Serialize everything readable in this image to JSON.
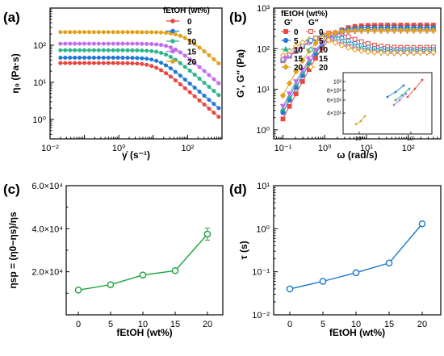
{
  "panels": {
    "a": {
      "label": "(a)"
    },
    "b": {
      "label": "(b)"
    },
    "c": {
      "label": "(c)"
    },
    "d": {
      "label": "(d)"
    }
  },
  "colors": {
    "0": "#e8463e",
    "5": "#1f78d6",
    "10": "#2fb58a",
    "15": "#c36ee8",
    "20": "#e0a11b",
    "c_line": "#1aa33c",
    "d_line": "#1877cf"
  },
  "chart_data": [
    {
      "id": "a",
      "type": "line",
      "xscale": "log",
      "yscale": "log",
      "xlim": [
        0.01,
        1000
      ],
      "ylim": [
        0.3,
        1000
      ],
      "x_ticks": [
        "10⁻²",
        "10⁰",
        "10²"
      ],
      "y_ticks": [
        "10⁰",
        "10¹",
        "10²"
      ],
      "xlabel": "γ̇ (s⁻¹)",
      "ylabel": "η₀ (Pa·s)",
      "legend_title": "fEtOH (wt%)",
      "series": [
        {
          "name": "0",
          "eta0": 33,
          "lambda": 0.085
        },
        {
          "name": "5",
          "eta0": 46,
          "lambda": 0.065
        },
        {
          "name": "10",
          "eta0": 73,
          "lambda": 0.042
        },
        {
          "name": "15",
          "eta0": 110,
          "lambda": 0.028
        },
        {
          "name": "20",
          "eta0": 225,
          "lambda": 0.0145
        }
      ],
      "n": 0.21,
      "x_range": [
        0.02,
        800
      ]
    },
    {
      "id": "b",
      "type": "line",
      "xscale": "log",
      "yscale": "log",
      "xlim": [
        0.06,
        600
      ],
      "ylim": [
        0.6,
        1000
      ],
      "x_ticks": [
        "10⁻¹",
        "10⁰",
        "10¹",
        "10²"
      ],
      "y_ticks": [
        "10⁰",
        "10¹",
        "10²",
        "10³"
      ],
      "xlabel": "ω (rad/s)",
      "ylabel": "G′, G″ (Pa)",
      "legend_title": "fEtOH (wt%)",
      "legend_cols": [
        "G′",
        "G″"
      ],
      "series": [
        {
          "name": "0",
          "G0": 380,
          "lambda": 0.7
        },
        {
          "name": "5",
          "G0": 330,
          "lambda": 0.9
        },
        {
          "name": "10",
          "G0": 300,
          "lambda": 1.05
        },
        {
          "name": "15",
          "G0": 270,
          "lambda": 1.2
        },
        {
          "name": "20",
          "G0": 280,
          "lambda": 1.6
        }
      ],
      "x_range": [
        0.1,
        400
      ],
      "inset": {
        "y_ticks": [
          "10²",
          "8×10¹",
          "6×10¹",
          "4×10¹"
        ],
        "x_ticks": [
          "10⁰",
          "10¹"
        ]
      }
    },
    {
      "id": "c",
      "type": "line",
      "categories": [
        "0",
        "5",
        "10",
        "15",
        "20"
      ],
      "values": [
        11500,
        14000,
        18500,
        20500,
        37500
      ],
      "errors": [
        700,
        600,
        600,
        600,
        2800
      ],
      "ylim": [
        0,
        60000
      ],
      "y_ticks": [
        "2.0×10⁴",
        "4.0×10⁴",
        "6.0×10⁴"
      ],
      "y_tick_values": [
        20000,
        40000,
        60000
      ],
      "xlabel": "fEtOH (wt%)",
      "ylabel": "ηsp = (η0−ηs)/ηs"
    },
    {
      "id": "d",
      "type": "line",
      "yscale": "log",
      "categories": [
        "0",
        "5",
        "10",
        "15",
        "20"
      ],
      "values": [
        0.04,
        0.06,
        0.095,
        0.16,
        1.3
      ],
      "ylim": [
        0.01,
        10
      ],
      "y_ticks": [
        "10⁻²",
        "10⁻¹",
        "10⁰",
        "10¹"
      ],
      "xlabel": "fEtOH (wt%)",
      "ylabel": "τ (s)"
    }
  ]
}
